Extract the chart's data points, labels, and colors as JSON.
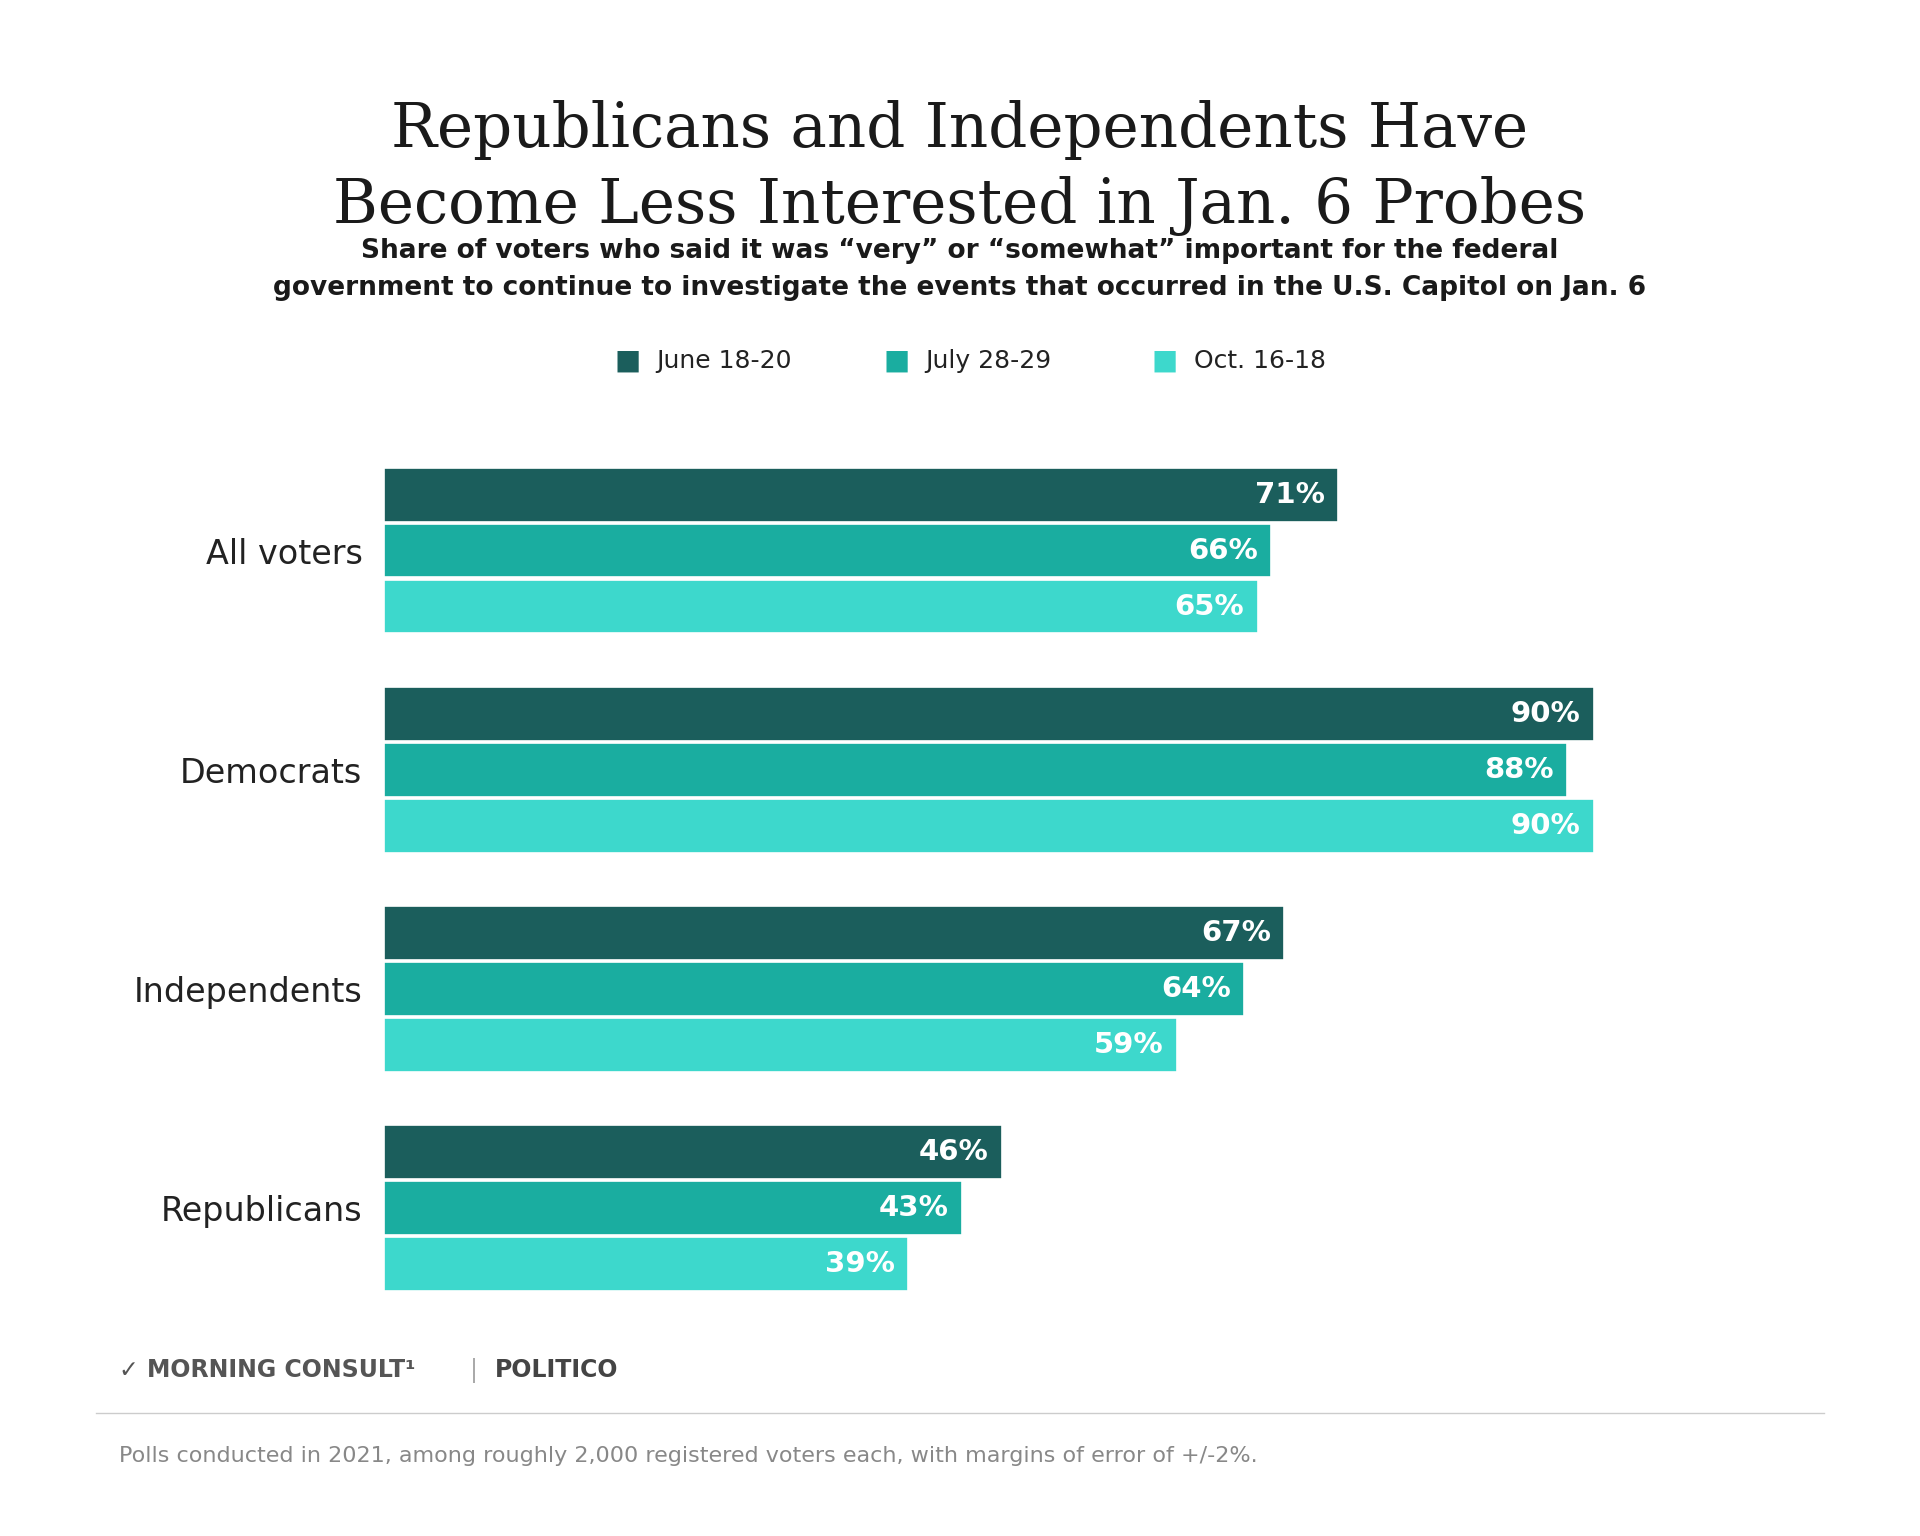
{
  "title": "Republicans and Independents Have\nBecome Less Interested in Jan. 6 Probes",
  "subtitle": "Share of voters who said it was “very” or “somewhat” important for the federal\ngovernment to continue to investigate the events that occurred in the U.S. Capitol on Jan. 6",
  "footnote": "Polls conducted in 2021, among roughly 2,000 registered voters each, with margins of error of +/-2%.",
  "categories": [
    "All voters",
    "Democrats",
    "Independents",
    "Republicans"
  ],
  "series": [
    {
      "label": "June 18-20",
      "color": "#1b5e5c",
      "values": [
        71,
        90,
        67,
        46
      ]
    },
    {
      "label": "July 28-29",
      "color": "#1aada0",
      "values": [
        66,
        88,
        64,
        43
      ]
    },
    {
      "label": "Oct. 16-18",
      "color": "#3dd8cc",
      "values": [
        65,
        90,
        59,
        39
      ]
    }
  ],
  "header_bar_color": "#4dd9c8",
  "background_color": "#ffffff",
  "title_fontsize": 44,
  "subtitle_fontsize": 19,
  "legend_fontsize": 18,
  "label_fontsize": 21,
  "category_fontsize": 24,
  "footnote_fontsize": 16,
  "branding_fontsize": 17
}
